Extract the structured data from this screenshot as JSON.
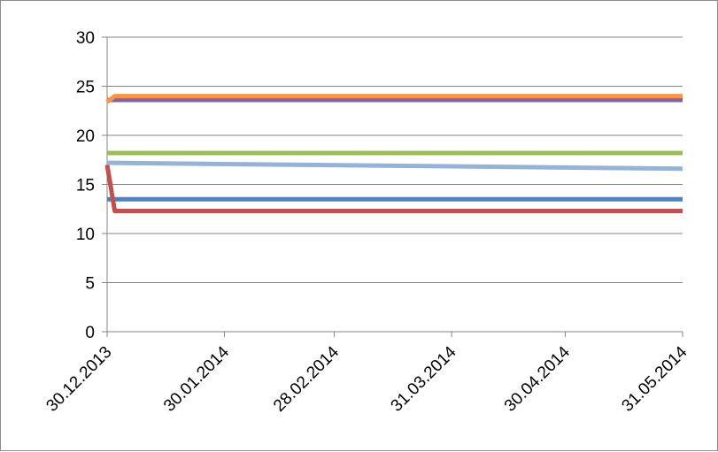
{
  "chart_data": {
    "type": "line",
    "title": "",
    "xlabel": "",
    "ylabel": "",
    "ylim": [
      0,
      30
    ],
    "y_ticks": [
      "0",
      "5",
      "10",
      "15",
      "20",
      "25",
      "30"
    ],
    "x_range": [
      "2013-12-30",
      "2014-05-31"
    ],
    "x_tick_labels": [
      "30.12.2013",
      "30.01.2014",
      "28.02.2014",
      "31.03.2014",
      "30.04.2014",
      "31.05.2014"
    ],
    "x_tick_dates": [
      "2013-12-30",
      "2014-01-30",
      "2014-02-28",
      "2014-03-31",
      "2014-04-30",
      "2014-05-31"
    ],
    "grid": true,
    "legend": "none",
    "series": [
      {
        "color": "#4f81bd",
        "points": [
          [
            "2013-12-30",
            13.5
          ],
          [
            "2014-05-31",
            13.5
          ]
        ]
      },
      {
        "color": "#c0504d",
        "points": [
          [
            "2013-12-30",
            17.0
          ],
          [
            "2014-01-01",
            12.3
          ],
          [
            "2014-05-31",
            12.3
          ]
        ]
      },
      {
        "color": "#9bbb59",
        "points": [
          [
            "2013-12-30",
            18.2
          ],
          [
            "2014-05-31",
            18.2
          ]
        ]
      },
      {
        "color": "#8064a2",
        "points": [
          [
            "2013-12-30",
            23.6
          ],
          [
            "2014-05-31",
            23.6
          ]
        ]
      },
      {
        "color": "#f79646",
        "points": [
          [
            "2013-12-30",
            23.4
          ],
          [
            "2014-01-01",
            24.0
          ],
          [
            "2014-05-31",
            24.0
          ]
        ]
      },
      {
        "color": "#95b3d7",
        "points": [
          [
            "2013-12-30",
            17.2
          ],
          [
            "2014-05-31",
            16.6
          ]
        ]
      }
    ]
  }
}
